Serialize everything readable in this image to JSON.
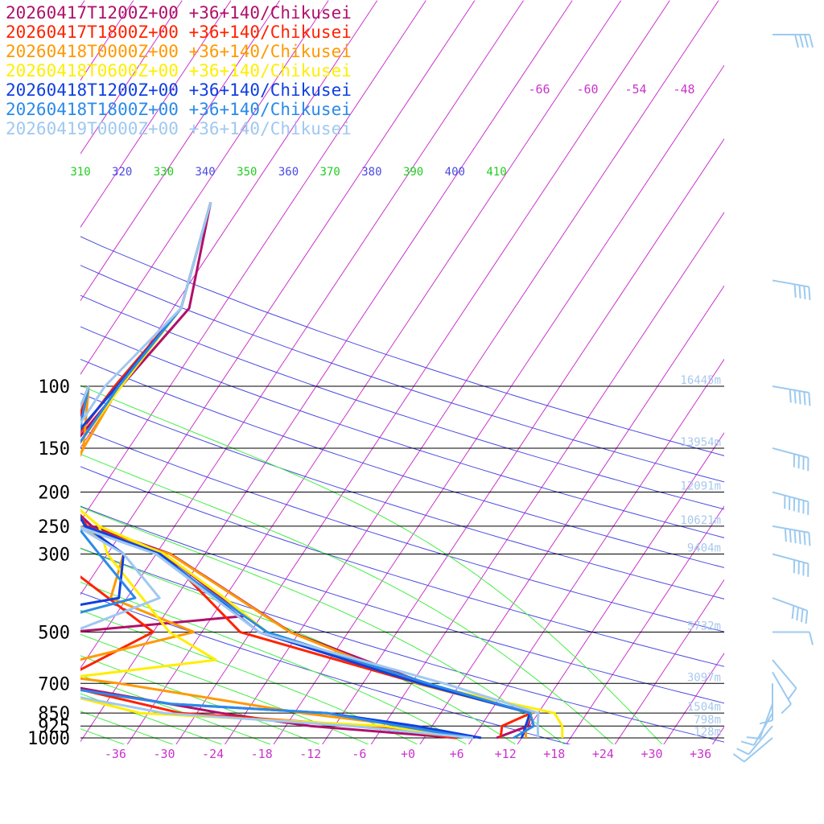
{
  "chart_data": {
    "type": "line",
    "title": "",
    "xlabel": "",
    "ylabel": "",
    "legend_placement": "top-left",
    "x_ticks": [
      -36,
      -30,
      -24,
      -18,
      -12,
      -6,
      0,
      6,
      12,
      18,
      24,
      30,
      36
    ],
    "x_tick_labels": [
      "-36",
      "-30",
      "-24",
      "-18",
      "-12",
      "-6",
      "+0",
      "+6",
      "+12",
      "+18",
      "+24",
      "+30",
      "+36"
    ],
    "pressure_levels": [
      {
        "label": "100",
        "p": 100,
        "height": "16445m"
      },
      {
        "label": "150",
        "p": 150,
        "height": "13954m"
      },
      {
        "label": "200",
        "p": 200,
        "height": "12091m"
      },
      {
        "label": "250",
        "p": 250,
        "height": "10621m"
      },
      {
        "label": "300",
        "p": 300,
        "height": "9404m"
      },
      {
        "label": "500",
        "p": 500,
        "height": "5732m"
      },
      {
        "label": "700",
        "p": 700,
        "height": "3097m"
      },
      {
        "label": "850",
        "p": 850,
        "height": "1504m"
      },
      {
        "label": "925",
        "p": 925,
        "height": "798m"
      },
      {
        "label": "1000",
        "p": 1000,
        "height": "128m"
      }
    ],
    "theta_labels": [
      "310",
      "320",
      "330",
      "340",
      "350",
      "360",
      "370",
      "380",
      "390",
      "400",
      "410"
    ],
    "isotherm_labels": [
      "-66",
      "-60",
      "-54",
      "-48"
    ],
    "series": [
      {
        "name": "20260417T1200Z+00 +36+140/Chikusei",
        "color": "#b0106a",
        "temp": [
          [
            -68,
            30
          ],
          [
            -62,
            60
          ],
          [
            -64,
            100
          ],
          [
            -65.2,
            150
          ],
          [
            -63.4,
            200
          ],
          [
            -56.2,
            250
          ],
          [
            -44.2,
            300
          ],
          [
            -23.1,
            500
          ],
          [
            -2.3,
            700
          ],
          [
            13.1,
            850
          ],
          [
            13.8,
            925
          ],
          [
            10.9,
            1000
          ]
        ],
        "dew": [
          [
            -68,
            100
          ],
          [
            -65.2,
            150
          ],
          [
            -63.4,
            200
          ],
          [
            -56.2,
            250
          ],
          [
            -45,
            300
          ],
          [
            -30,
            450
          ],
          [
            -50,
            500
          ],
          [
            -48,
            700
          ],
          [
            -25,
            850
          ],
          [
            -13,
            925
          ],
          [
            6,
            1000
          ]
        ]
      },
      {
        "name": "20260417T1800Z+00 +36+140/Chikusei",
        "color": "#ff2200",
        "temp": [
          [
            -68,
            30
          ],
          [
            -63,
            60
          ],
          [
            -64.8,
            100
          ],
          [
            -65.5,
            150
          ],
          [
            -62.2,
            200
          ],
          [
            -56.8,
            250
          ],
          [
            -45,
            300
          ],
          [
            -29.3,
            500
          ],
          [
            -3.1,
            700
          ],
          [
            13.1,
            850
          ],
          [
            10.6,
            925
          ],
          [
            11.4,
            1000
          ]
        ],
        "dew": [
          [
            -68,
            100
          ],
          [
            -65.5,
            150
          ],
          [
            -62.2,
            200
          ],
          [
            -56.8,
            250
          ],
          [
            -59,
            300
          ],
          [
            -40,
            500
          ],
          [
            -48,
            700
          ],
          [
            -30,
            850
          ],
          [
            -6,
            925
          ],
          [
            6,
            1000
          ]
        ]
      },
      {
        "name": "20260418T0000Z+00 +36+140/Chikusei",
        "color": "#ff9900",
        "temp": [
          [
            -68,
            30
          ],
          [
            -63,
            60
          ],
          [
            -64.2,
            100
          ],
          [
            -63.6,
            150
          ],
          [
            -62.6,
            200
          ],
          [
            -57.8,
            250
          ],
          [
            -44.3,
            300
          ],
          [
            -23.2,
            500
          ],
          [
            -3.4,
            700
          ],
          [
            13.2,
            850
          ],
          [
            13.5,
            925
          ],
          [
            14.5,
            1000
          ]
        ],
        "dew": [
          [
            -68,
            100
          ],
          [
            -63.6,
            150
          ],
          [
            -62.6,
            200
          ],
          [
            -57.8,
            250
          ],
          [
            -50,
            300
          ],
          [
            -48,
            400
          ],
          [
            -35,
            500
          ],
          [
            -52,
            650
          ],
          [
            -40,
            700
          ],
          [
            -15,
            850
          ],
          [
            -1,
            925
          ],
          [
            8,
            1000
          ]
        ]
      },
      {
        "name": "20260418T0600Z+00 +36+140/Chikusei",
        "color": "#ffee00",
        "temp": [
          [
            -68,
            30
          ],
          [
            -63,
            60
          ],
          [
            -64,
            100
          ],
          [
            -64.5,
            150
          ],
          [
            -63,
            200
          ],
          [
            -55.3,
            250
          ],
          [
            -45,
            300
          ],
          [
            -34,
            400
          ],
          [
            -26,
            500
          ],
          [
            -3,
            700
          ],
          [
            16,
            850
          ],
          [
            18,
            925
          ],
          [
            19,
            1000
          ]
        ],
        "dew": [
          [
            -68,
            100
          ],
          [
            -64.5,
            150
          ],
          [
            -63,
            200
          ],
          [
            -55.3,
            250
          ],
          [
            -52,
            300
          ],
          [
            -38,
            500
          ],
          [
            -30,
            600
          ],
          [
            -52,
            700
          ],
          [
            -35,
            850
          ],
          [
            -4,
            925
          ],
          [
            8,
            1000
          ]
        ]
      },
      {
        "name": "20260418T1200Z+00 +36+140/Chikusei",
        "color": "#1040e0",
        "temp": [
          [
            -68,
            30
          ],
          [
            -63,
            60
          ],
          [
            -64.5,
            100
          ],
          [
            -66,
            150
          ],
          [
            -62,
            200
          ],
          [
            -57,
            250
          ],
          [
            -45.5,
            300
          ],
          [
            -27,
            500
          ],
          [
            -3,
            700
          ],
          [
            13,
            850
          ],
          [
            13.5,
            925
          ],
          [
            14,
            1000
          ]
        ],
        "dew": [
          [
            -68,
            100
          ],
          [
            -66,
            150
          ],
          [
            -62,
            200
          ],
          [
            -57,
            250
          ],
          [
            -50,
            300
          ],
          [
            -47,
            400
          ],
          [
            -68,
            500
          ],
          [
            -55,
            600
          ],
          [
            -50,
            700
          ],
          [
            -32,
            800
          ],
          [
            -12,
            850
          ],
          [
            0,
            925
          ],
          [
            9,
            1000
          ]
        ]
      },
      {
        "name": "20260418T1800Z+00 +36+140/Chikusei",
        "color": "#2a8ae8",
        "temp": [
          [
            -68,
            30
          ],
          [
            -63,
            60
          ],
          [
            -64.3,
            100
          ],
          [
            -64.5,
            150
          ],
          [
            -62.4,
            200
          ],
          [
            -58,
            250
          ],
          [
            -46,
            300
          ],
          [
            -26,
            500
          ],
          [
            -2,
            700
          ],
          [
            13,
            850
          ],
          [
            14.5,
            925
          ],
          [
            13,
            1000
          ]
        ],
        "dew": [
          [
            -68,
            100
          ],
          [
            -64.5,
            150
          ],
          [
            -62.4,
            200
          ],
          [
            -58,
            250
          ],
          [
            -53,
            300
          ],
          [
            -45,
            400
          ],
          [
            -58,
            500
          ],
          [
            -60,
            600
          ],
          [
            -50,
            700
          ],
          [
            -32,
            800
          ],
          [
            -12,
            850
          ],
          [
            -2,
            925
          ],
          [
            8,
            1000
          ]
        ]
      },
      {
        "name": "20260419T0000Z+00 +36+140/Chikusei",
        "color": "#a0c8f0",
        "temp": [
          [
            -68,
            30
          ],
          [
            -63,
            60
          ],
          [
            -66,
            100
          ],
          [
            -66,
            150
          ],
          [
            -62,
            200
          ],
          [
            -58,
            250
          ],
          [
            -46,
            300
          ],
          [
            -27,
            500
          ],
          [
            0,
            700
          ],
          [
            14,
            850
          ],
          [
            15,
            925
          ],
          [
            16,
            1000
          ]
        ],
        "dew": [
          [
            -68,
            100
          ],
          [
            -66,
            150
          ],
          [
            -62,
            200
          ],
          [
            -58,
            250
          ],
          [
            -50,
            300
          ],
          [
            -42,
            400
          ],
          [
            -50,
            500
          ],
          [
            -62,
            600
          ],
          [
            -54,
            700
          ],
          [
            -32,
            850
          ],
          [
            -8,
            925
          ],
          [
            8,
            1000
          ]
        ]
      }
    ],
    "wind_barbs": [
      {
        "p": 10,
        "speed": 35,
        "dir": 270
      },
      {
        "p": 50,
        "speed": 40,
        "dir": 280
      },
      {
        "p": 100,
        "speed": 45,
        "dir": 280
      },
      {
        "p": 150,
        "speed": 40,
        "dir": 285
      },
      {
        "p": 200,
        "speed": 60,
        "dir": 285
      },
      {
        "p": 250,
        "speed": 55,
        "dir": 280
      },
      {
        "p": 300,
        "speed": 40,
        "dir": 285
      },
      {
        "p": 400,
        "speed": 35,
        "dir": 290
      },
      {
        "p": 500,
        "speed": 10,
        "dir": 270
      },
      {
        "p": 600,
        "speed": 10,
        "dir": 320
      },
      {
        "p": 650,
        "speed": 10,
        "dir": 330
      },
      {
        "p": 700,
        "speed": 10,
        "dir": 360
      },
      {
        "p": 800,
        "speed": 10,
        "dir": 20
      },
      {
        "p": 850,
        "speed": 10,
        "dir": 30
      },
      {
        "p": 925,
        "speed": 10,
        "dir": 40
      },
      {
        "p": 1000,
        "speed": 10,
        "dir": 50
      }
    ]
  }
}
